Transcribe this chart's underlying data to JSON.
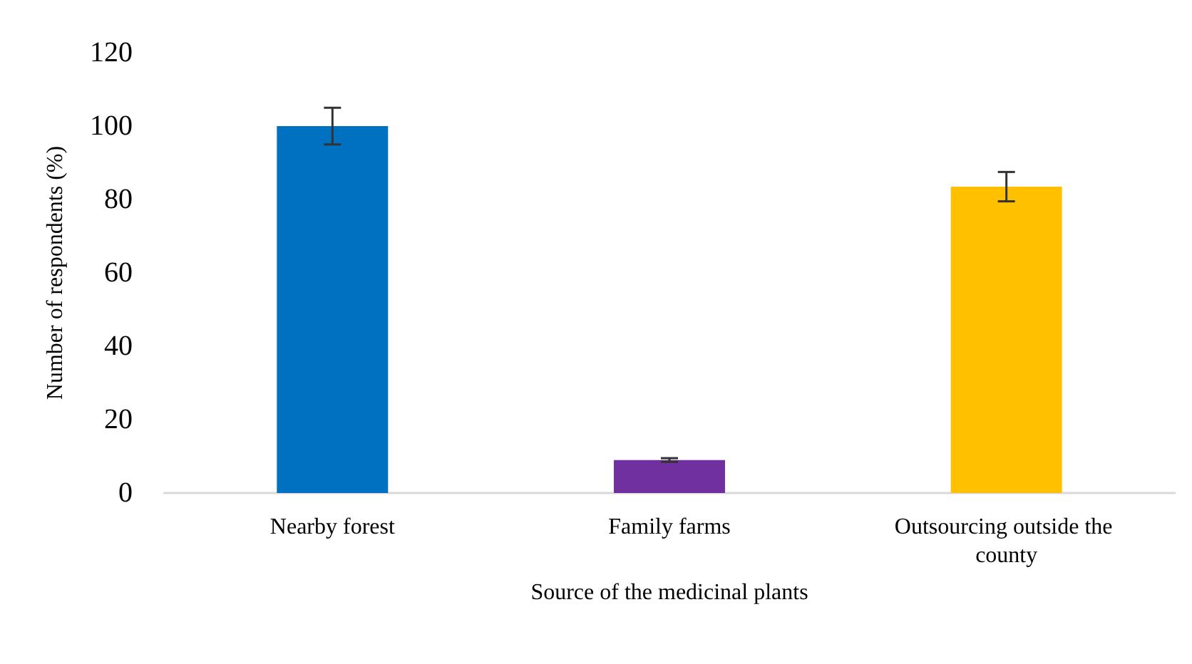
{
  "chart_data": {
    "type": "bar",
    "xlabel": "Source of the medicinal plants",
    "ylabel": "Number of respondents (%)",
    "categories": [
      "Nearby forest",
      "Family farms",
      "Outsourcing outside the county"
    ],
    "values": [
      100,
      9,
      83.5
    ],
    "colors": [
      "#0070c0",
      "#7030a0",
      "#ffc000"
    ],
    "errors": [
      5,
      0.5,
      4
    ],
    "ylim": [
      0,
      120
    ],
    "yticks": [
      0,
      20,
      40,
      60,
      80,
      100,
      120
    ],
    "grid": false
  }
}
